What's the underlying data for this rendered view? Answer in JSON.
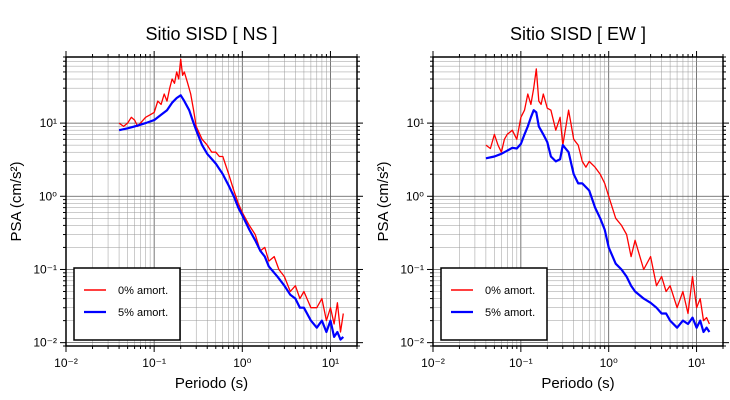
{
  "chart_data": [
    {
      "type": "line",
      "title": "Sitio SISD [ NS ]",
      "xlabel": "Periodo (s)",
      "ylabel": "PSA (cm/s²)",
      "xscale": "log",
      "yscale": "log",
      "xlim": [
        0.01,
        20
      ],
      "ylim": [
        0.009,
        80
      ],
      "xticks": [
        "10⁻²",
        "10⁻¹",
        "10⁰",
        "10¹"
      ],
      "yticks": [
        "10⁻²",
        "10⁻¹",
        "10⁰",
        "10¹"
      ],
      "grid": true,
      "legend_position": "bottom-left",
      "series": [
        {
          "name": "0% amort.",
          "color": "#ff0000",
          "x": [
            0.04,
            0.045,
            0.05,
            0.055,
            0.06,
            0.065,
            0.07,
            0.08,
            0.09,
            0.1,
            0.11,
            0.12,
            0.13,
            0.14,
            0.15,
            0.16,
            0.17,
            0.18,
            0.19,
            0.2,
            0.21,
            0.22,
            0.24,
            0.26,
            0.28,
            0.3,
            0.35,
            0.4,
            0.45,
            0.5,
            0.55,
            0.6,
            0.7,
            0.8,
            0.9,
            1.0,
            1.2,
            1.4,
            1.6,
            1.8,
            2.0,
            2.3,
            2.6,
            3.0,
            3.5,
            4.0,
            4.5,
            5.0,
            6.0,
            7.0,
            8.0,
            9.0,
            10,
            11,
            12,
            13,
            14
          ],
          "y": [
            10,
            9,
            10,
            12,
            11,
            9,
            10,
            12,
            13,
            14,
            20,
            18,
            25,
            20,
            30,
            40,
            35,
            50,
            40,
            75,
            45,
            50,
            35,
            25,
            15,
            9,
            6,
            5,
            4,
            4,
            3.5,
            3.5,
            2,
            1.2,
            0.8,
            0.6,
            0.4,
            0.3,
            0.18,
            0.2,
            0.13,
            0.15,
            0.1,
            0.08,
            0.05,
            0.06,
            0.04,
            0.05,
            0.03,
            0.03,
            0.04,
            0.02,
            0.03,
            0.018,
            0.035,
            0.014,
            0.025
          ]
        },
        {
          "name": "5% amort.",
          "color": "#0000ff",
          "x": [
            0.04,
            0.05,
            0.06,
            0.07,
            0.08,
            0.09,
            0.1,
            0.12,
            0.14,
            0.16,
            0.18,
            0.2,
            0.22,
            0.25,
            0.28,
            0.3,
            0.35,
            0.4,
            0.5,
            0.6,
            0.7,
            0.8,
            0.9,
            1.0,
            1.2,
            1.4,
            1.6,
            1.8,
            2.0,
            2.5,
            3.0,
            3.5,
            4.0,
            4.5,
            5.0,
            6.0,
            7.0,
            8.0,
            9.0,
            10,
            11,
            12,
            13,
            14
          ],
          "y": [
            8,
            8.5,
            9,
            9.5,
            10,
            10.5,
            11,
            13,
            15,
            19,
            22,
            24,
            20,
            15,
            10,
            8,
            5,
            3.8,
            2.8,
            2,
            1.4,
            1,
            0.7,
            0.55,
            0.35,
            0.25,
            0.18,
            0.15,
            0.11,
            0.08,
            0.06,
            0.045,
            0.04,
            0.03,
            0.03,
            0.02,
            0.016,
            0.02,
            0.014,
            0.02,
            0.012,
            0.014,
            0.011,
            0.012
          ]
        }
      ]
    },
    {
      "type": "line",
      "title": "Sitio SISD [ EW ]",
      "xlabel": "Periodo (s)",
      "ylabel": "PSA (cm/s²)",
      "xscale": "log",
      "yscale": "log",
      "xlim": [
        0.01,
        20
      ],
      "ylim": [
        0.009,
        80
      ],
      "xticks": [
        "10⁻²",
        "10⁻¹",
        "10⁰",
        "10¹"
      ],
      "yticks": [
        "10⁻²",
        "10⁻¹",
        "10⁰",
        "10¹"
      ],
      "grid": true,
      "legend_position": "bottom-left",
      "series": [
        {
          "name": "0% amort.",
          "color": "#ff0000",
          "x": [
            0.04,
            0.045,
            0.05,
            0.055,
            0.06,
            0.065,
            0.07,
            0.08,
            0.09,
            0.1,
            0.11,
            0.12,
            0.13,
            0.14,
            0.15,
            0.16,
            0.17,
            0.18,
            0.2,
            0.22,
            0.25,
            0.28,
            0.3,
            0.35,
            0.4,
            0.45,
            0.5,
            0.55,
            0.6,
            0.7,
            0.8,
            0.9,
            1.0,
            1.2,
            1.4,
            1.6,
            1.8,
            2.0,
            2.5,
            3.0,
            3.5,
            4.0,
            4.5,
            5.0,
            6.0,
            7.0,
            8.0,
            9.0,
            10,
            11,
            12,
            13,
            14
          ],
          "y": [
            5,
            4.5,
            7,
            5,
            4,
            6,
            7,
            8,
            6,
            12,
            15,
            25,
            18,
            30,
            55,
            20,
            18,
            25,
            16,
            15,
            8,
            12,
            5,
            15,
            6,
            5,
            3,
            2.5,
            3,
            2.5,
            2,
            1.5,
            1,
            0.5,
            0.4,
            0.3,
            0.15,
            0.25,
            0.1,
            0.15,
            0.06,
            0.08,
            0.05,
            0.06,
            0.03,
            0.05,
            0.025,
            0.08,
            0.03,
            0.04,
            0.02,
            0.022,
            0.018
          ]
        },
        {
          "name": "5% amort.",
          "color": "#0000ff",
          "x": [
            0.04,
            0.05,
            0.06,
            0.07,
            0.08,
            0.09,
            0.1,
            0.11,
            0.12,
            0.13,
            0.14,
            0.15,
            0.16,
            0.18,
            0.2,
            0.22,
            0.25,
            0.28,
            0.3,
            0.35,
            0.4,
            0.45,
            0.5,
            0.6,
            0.7,
            0.8,
            0.9,
            1.0,
            1.2,
            1.4,
            1.6,
            1.8,
            2.0,
            2.5,
            3.0,
            3.5,
            4.0,
            4.5,
            5.0,
            6.0,
            7.0,
            8.0,
            9.0,
            10,
            11,
            12,
            13,
            14
          ],
          "y": [
            3.3,
            3.5,
            3.8,
            4.2,
            4.6,
            4.5,
            5.2,
            7,
            9,
            12,
            15,
            14,
            9,
            7,
            5.5,
            3.5,
            3,
            3.2,
            5,
            4,
            2,
            1.5,
            1.5,
            1.2,
            0.7,
            0.5,
            0.35,
            0.2,
            0.12,
            0.1,
            0.08,
            0.06,
            0.05,
            0.04,
            0.035,
            0.03,
            0.025,
            0.025,
            0.02,
            0.016,
            0.02,
            0.018,
            0.022,
            0.016,
            0.02,
            0.014,
            0.016,
            0.014
          ]
        }
      ]
    }
  ]
}
